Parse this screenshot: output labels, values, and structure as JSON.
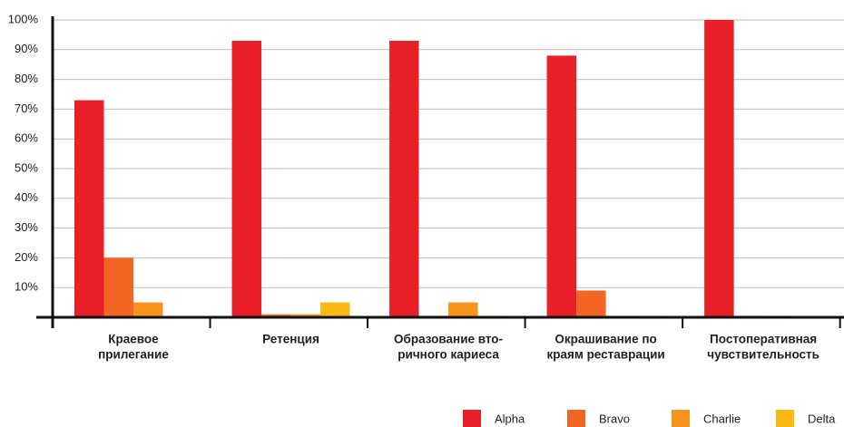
{
  "chart_data": {
    "type": "bar",
    "categories": [
      [
        "Краевое",
        "прилегание"
      ],
      [
        "Ретенция"
      ],
      [
        "Образование вто-",
        "ричного кариеса"
      ],
      [
        "Окрашивание по",
        "краям реставрации"
      ],
      [
        "Постоперативная",
        "чувствительность"
      ]
    ],
    "series": [
      {
        "name": "Alpha",
        "color": "#e8202a",
        "values": [
          73,
          93,
          93,
          88,
          100
        ]
      },
      {
        "name": "Bravo",
        "color": "#f26522",
        "values": [
          20,
          1,
          0.5,
          9,
          0.5
        ]
      },
      {
        "name": "Charlie",
        "color": "#f7941d",
        "values": [
          5,
          1,
          5,
          0.5,
          0.5
        ]
      },
      {
        "name": "Delta",
        "color": "#fdb913",
        "values": [
          0,
          5,
          0.5,
          0.5,
          0.3
        ]
      }
    ],
    "ylim": [
      0,
      100
    ],
    "yticks": [
      {
        "value": 10,
        "label": "10%"
      },
      {
        "value": 20,
        "label": "20%"
      },
      {
        "value": 30,
        "label": "30%"
      },
      {
        "value": 40,
        "label": "40%"
      },
      {
        "value": 50,
        "label": "50%"
      },
      {
        "value": 60,
        "label": "60%"
      },
      {
        "value": 70,
        "label": "70%"
      },
      {
        "value": 80,
        "label": "80%"
      },
      {
        "value": 90,
        "label": "90%"
      },
      {
        "value": 100,
        "label": "100%"
      }
    ],
    "grid": true,
    "legend": "bottom-right"
  }
}
